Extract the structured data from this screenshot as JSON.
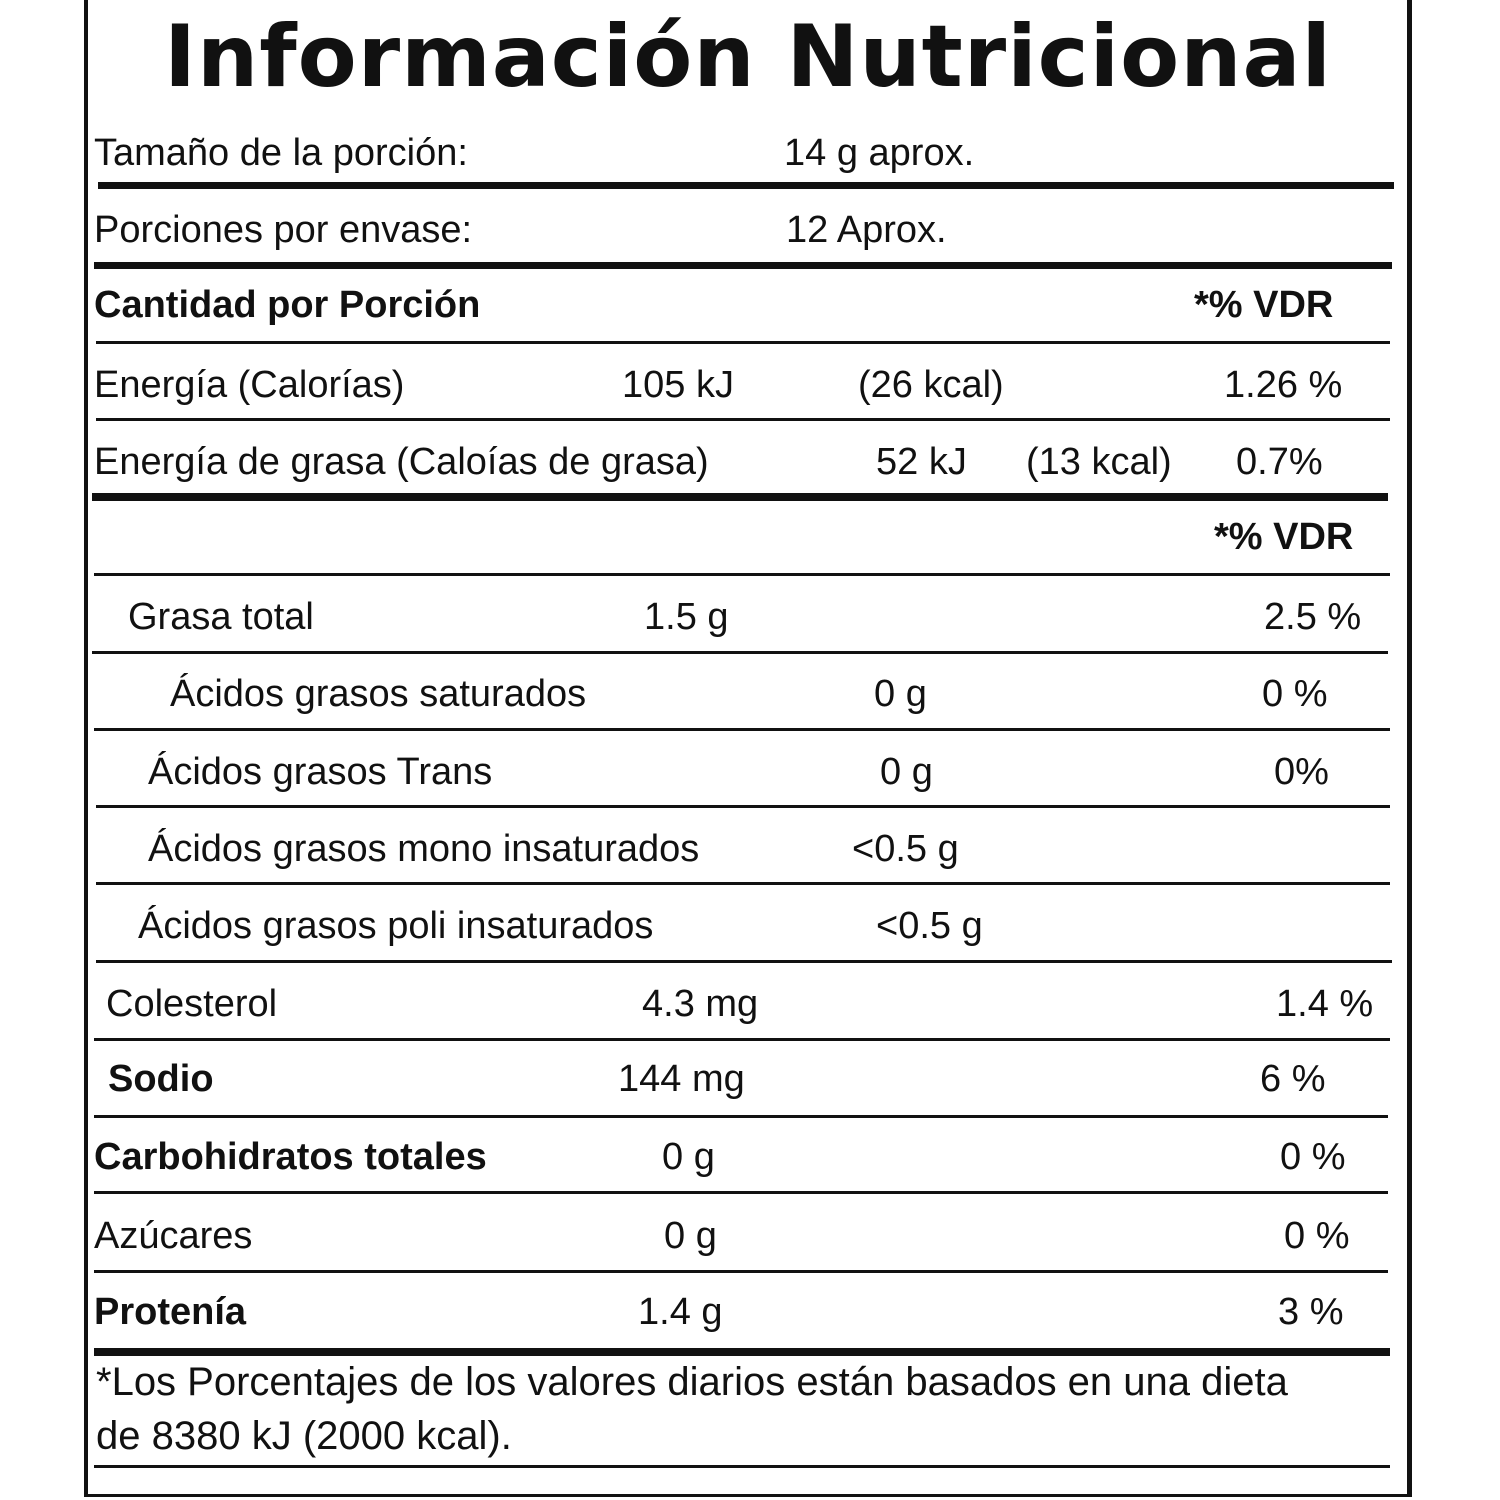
{
  "title": "Información Nutricional",
  "serving": {
    "size_label": "Tamaño de la porción:",
    "size_value": "14 g aprox.",
    "per_container_label": "Porciones por envase:",
    "per_container_value": "12 Aprox."
  },
  "header": {
    "amount_label": "Cantidad por Porción",
    "vdr_label": "*% VDR"
  },
  "energy": {
    "label": "Energía (Calorías)",
    "kj": "105 kJ",
    "kcal": "(26 kcal)",
    "vdr": "1.26 %"
  },
  "fat_energy": {
    "label": "Energía de grasa (Caloías de grasa)",
    "kj": "52 kJ",
    "kcal": "(13 kcal)",
    "vdr": "0.7%"
  },
  "vdr_header2": "*% VDR",
  "nutrients": {
    "total_fat": {
      "label": "Grasa total",
      "amount": "1.5 g",
      "vdr": "2.5 %"
    },
    "saturated": {
      "label": "Ácidos grasos saturados",
      "amount": "0 g",
      "vdr": "0 %"
    },
    "trans": {
      "label": "Ácidos grasos Trans",
      "amount": "0 g",
      "vdr": "0%"
    },
    "mono": {
      "label": "Ácidos grasos mono insaturados",
      "amount": "<0.5 g"
    },
    "poly": {
      "label": "Ácidos grasos poli insaturados",
      "amount": "<0.5 g"
    },
    "cholesterol": {
      "label": "Colesterol",
      "amount": "4.3 mg",
      "vdr": "1.4 %"
    },
    "sodium": {
      "label": "Sodio",
      "amount": "144 mg",
      "vdr": "6 %"
    },
    "carbs": {
      "label": "Carbohidratos totales",
      "amount": "0 g",
      "vdr": "0 %"
    },
    "sugars": {
      "label": "Azúcares",
      "amount": "0 g",
      "vdr": "0 %"
    },
    "protein": {
      "label": "Protenía",
      "amount": "1.4 g",
      "vdr": "3 %"
    }
  },
  "footnote": {
    "line1": "*Los Porcentajes de los valores diarios están basados en una dieta",
    "line2": "de 8380 kJ (2000 kcal)."
  }
}
